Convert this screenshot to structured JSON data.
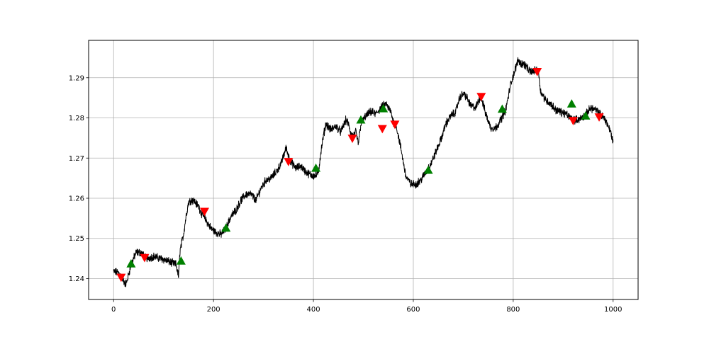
{
  "chart_data": {
    "type": "line",
    "title": "",
    "xlabel": "",
    "ylabel": "",
    "xlim": [
      -50,
      1050
    ],
    "ylim": [
      1.2348,
      1.2993
    ],
    "xticks": [
      0,
      200,
      400,
      600,
      800,
      1000
    ],
    "xtick_labels": [
      "0",
      "200",
      "400",
      "600",
      "800",
      "1000"
    ],
    "yticks": [
      1.24,
      1.25,
      1.26,
      1.27,
      1.28,
      1.29
    ],
    "ytick_labels": [
      "1.24",
      "1.25",
      "1.26",
      "1.27",
      "1.28",
      "1.29"
    ],
    "grid": true,
    "series": [
      {
        "color": "#000000",
        "x": [
          0,
          10,
          20,
          25,
          35,
          45,
          55,
          65,
          80,
          100,
          115,
          125,
          130,
          133,
          140,
          145,
          150,
          155,
          160,
          170,
          175,
          185,
          195,
          205,
          215,
          225,
          235,
          245,
          255,
          265,
          275,
          285,
          295,
          305,
          315,
          325,
          335,
          345,
          355,
          365,
          375,
          385,
          395,
          405,
          410,
          415,
          420,
          425,
          435,
          445,
          455,
          465,
          470,
          475,
          480,
          485,
          490,
          495,
          505,
          515,
          525,
          535,
          545,
          555,
          560,
          565,
          575,
          585,
          595,
          605,
          615,
          625,
          635,
          645,
          655,
          665,
          675,
          685,
          690,
          695,
          700,
          705,
          715,
          725,
          735,
          745,
          755,
          765,
          775,
          785,
          795,
          805,
          810,
          815,
          820,
          825,
          830,
          835,
          845,
          850,
          855,
          865,
          875,
          885,
          895,
          905,
          915,
          925,
          935,
          945,
          955,
          965,
          975,
          985,
          995,
          1000
        ],
        "y": [
          1.2417,
          1.2415,
          1.2395,
          1.2385,
          1.2435,
          1.2465,
          1.2465,
          1.245,
          1.2455,
          1.2448,
          1.244,
          1.2435,
          1.2405,
          1.247,
          1.251,
          1.2555,
          1.259,
          1.2595,
          1.2595,
          1.258,
          1.2565,
          1.2545,
          1.2525,
          1.2515,
          1.251,
          1.2525,
          1.2555,
          1.257,
          1.2595,
          1.261,
          1.261,
          1.2595,
          1.2625,
          1.2645,
          1.265,
          1.2665,
          1.2685,
          1.2725,
          1.269,
          1.2675,
          1.268,
          1.2665,
          1.2658,
          1.2655,
          1.2665,
          1.2715,
          1.2755,
          1.2785,
          1.277,
          1.278,
          1.2765,
          1.2795,
          1.2785,
          1.276,
          1.2755,
          1.2765,
          1.2735,
          1.2785,
          1.2805,
          1.2815,
          1.281,
          1.2825,
          1.2835,
          1.2815,
          1.279,
          1.2785,
          1.2725,
          1.2655,
          1.2635,
          1.2635,
          1.2645,
          1.2665,
          1.2685,
          1.2715,
          1.2745,
          1.2785,
          1.2805,
          1.2815,
          1.284,
          1.2855,
          1.286,
          1.2855,
          1.283,
          1.2825,
          1.2855,
          1.281,
          1.2775,
          1.2775,
          1.2795,
          1.282,
          1.2885,
          1.2925,
          1.2945,
          1.2935,
          1.2935,
          1.293,
          1.292,
          1.2915,
          1.2918,
          1.292,
          1.2865,
          1.2845,
          1.2835,
          1.282,
          1.2815,
          1.281,
          1.28,
          1.2795,
          1.2798,
          1.2808,
          1.2825,
          1.282,
          1.2808,
          1.2795,
          1.2765,
          1.274
        ]
      }
    ],
    "markers": {
      "up": {
        "color": "#008000",
        "x": [
          35,
          135,
          225,
          405,
          495,
          540,
          630,
          778,
          917,
          945
        ],
        "y": [
          1.2437,
          1.2444,
          1.2526,
          1.2675,
          1.2795,
          1.2823,
          1.267,
          1.2822,
          1.2835,
          1.2805
        ]
      },
      "down": {
        "color": "#ff0000",
        "x": [
          15,
          62,
          182,
          350,
          478,
          538,
          563,
          736,
          848,
          920,
          972
        ],
        "y": [
          1.2403,
          1.2452,
          1.2567,
          1.2691,
          1.2749,
          1.2773,
          1.2784,
          1.2853,
          1.2915,
          1.2793,
          1.2802
        ]
      }
    }
  }
}
